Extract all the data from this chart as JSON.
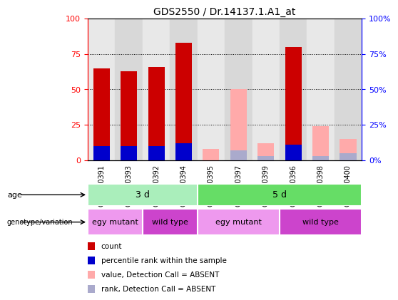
{
  "title": "GDS2550 / Dr.14137.1.A1_at",
  "samples": [
    "GSM130391",
    "GSM130393",
    "GSM130392",
    "GSM130394",
    "GSM130395",
    "GSM130397",
    "GSM130399",
    "GSM130396",
    "GSM130398",
    "GSM130400"
  ],
  "count_values": [
    65,
    63,
    66,
    83,
    0,
    0,
    0,
    80,
    0,
    0
  ],
  "percentile_values": [
    10,
    10,
    10,
    12,
    0,
    0,
    0,
    11,
    0,
    0
  ],
  "absent_value_values": [
    0,
    0,
    0,
    0,
    8,
    50,
    12,
    0,
    24,
    15
  ],
  "absent_rank_values": [
    0,
    0,
    0,
    0,
    0,
    7,
    3,
    0,
    3,
    5
  ],
  "color_count": "#cc0000",
  "color_percentile": "#0000cc",
  "color_absent_value": "#ffaaaa",
  "color_absent_rank": "#aaaacc",
  "ylim": [
    0,
    100
  ],
  "yticks": [
    0,
    25,
    50,
    75,
    100
  ],
  "bar_width": 0.6,
  "col_bg_even": "#e8e8e8",
  "col_bg_odd": "#d8d8d8",
  "age_labels": [
    {
      "label": "3 d",
      "start": 0,
      "end": 3,
      "color": "#aaeebb"
    },
    {
      "label": "5 d",
      "start": 4,
      "end": 9,
      "color": "#66dd66"
    }
  ],
  "genotype_labels": [
    {
      "label": "egy mutant",
      "start": 0,
      "end": 1,
      "color": "#ee99ee"
    },
    {
      "label": "wild type",
      "start": 2,
      "end": 3,
      "color": "#cc44cc"
    },
    {
      "label": "egy mutant",
      "start": 4,
      "end": 6,
      "color": "#ee99ee"
    },
    {
      "label": "wild type",
      "start": 7,
      "end": 9,
      "color": "#cc44cc"
    }
  ],
  "age_row_label": "age",
  "genotype_row_label": "genotype/variation",
  "legend_items": [
    {
      "label": "count",
      "color": "#cc0000"
    },
    {
      "label": "percentile rank within the sample",
      "color": "#0000cc"
    },
    {
      "label": "value, Detection Call = ABSENT",
      "color": "#ffaaaa"
    },
    {
      "label": "rank, Detection Call = ABSENT",
      "color": "#aaaacc"
    }
  ]
}
